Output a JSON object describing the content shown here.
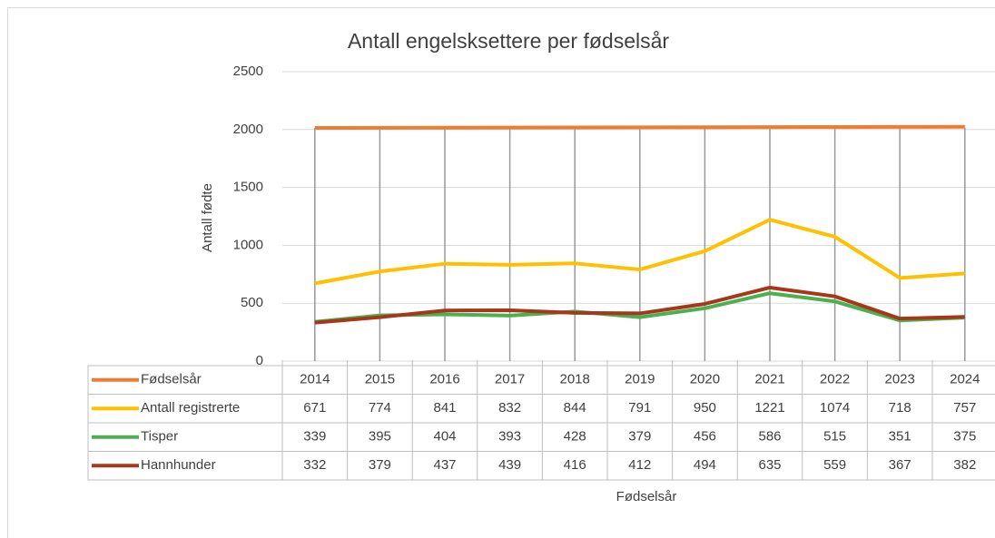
{
  "chart_data": {
    "type": "line",
    "title": "Antall engelsksettere per fødselsår",
    "y_axis_label": "Antall fødte",
    "x_axis_label": "Fødselsår",
    "ylim": [
      0,
      2500
    ],
    "yticks": [
      0,
      500,
      1000,
      1500,
      2000,
      2500
    ],
    "grid": true,
    "series": [
      {
        "name": "Fødselsår",
        "color": "#ed7d31",
        "values": [
          2014,
          2015,
          2016,
          2017,
          2018,
          2019,
          2020,
          2021,
          2022,
          2023,
          2024
        ]
      },
      {
        "name": "Antall registrerte",
        "color": "#ffc000",
        "values": [
          671,
          774,
          841,
          832,
          844,
          791,
          950,
          1221,
          1074,
          718,
          757
        ]
      },
      {
        "name": "Tisper",
        "color": "#4caf50",
        "values": [
          339,
          395,
          404,
          393,
          428,
          379,
          456,
          586,
          515,
          351,
          375
        ]
      },
      {
        "name": "Hannhunder",
        "color": "#a5371b",
        "values": [
          332,
          379,
          437,
          439,
          416,
          412,
          494,
          635,
          559,
          367,
          382
        ]
      }
    ]
  }
}
